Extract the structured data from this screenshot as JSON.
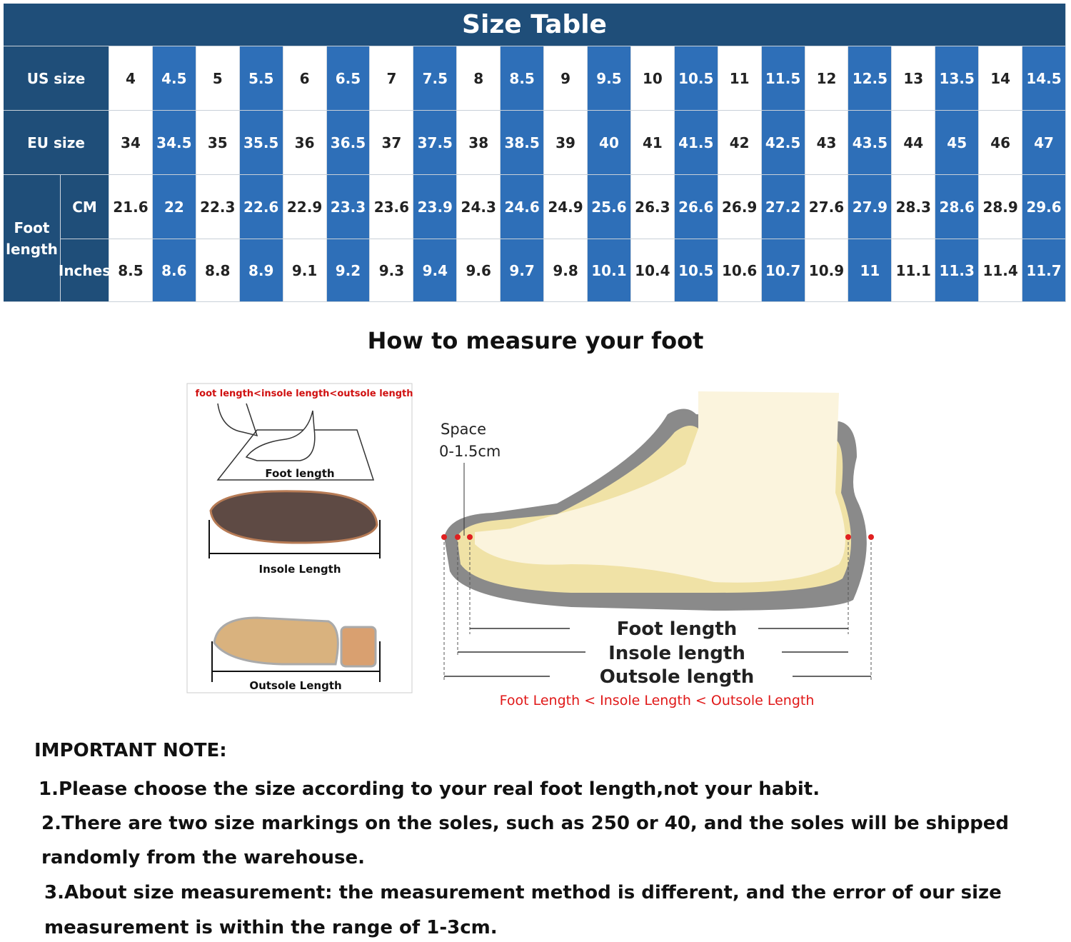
{
  "table": {
    "title": "Size Table",
    "us_label": "US size",
    "eu_label": "EU size",
    "foot_label": "Foot length",
    "cm_label": "CM",
    "inches_label": "Inches",
    "us": [
      "4",
      "4.5",
      "5",
      "5.5",
      "6",
      "6.5",
      "7",
      "7.5",
      "8",
      "8.5",
      "9",
      "9.5",
      "10",
      "10.5",
      "11",
      "11.5",
      "12",
      "12.5",
      "13",
      "13.5",
      "14",
      "14.5"
    ],
    "eu": [
      "34",
      "34.5",
      "35",
      "35.5",
      "36",
      "36.5",
      "37",
      "37.5",
      "38",
      "38.5",
      "39",
      "40",
      "41",
      "41.5",
      "42",
      "42.5",
      "43",
      "43.5",
      "44",
      "45",
      "46",
      "47"
    ],
    "cm": [
      "21.6",
      "22",
      "22.3",
      "22.6",
      "22.9",
      "23.3",
      "23.6",
      "23.9",
      "24.3",
      "24.6",
      "24.9",
      "25.6",
      "26.3",
      "26.6",
      "26.9",
      "27.2",
      "27.6",
      "27.9",
      "28.3",
      "28.6",
      "28.9",
      "29.6"
    ],
    "inches": [
      "8.5",
      "8.6",
      "8.8",
      "8.9",
      "9.1",
      "9.2",
      "9.3",
      "9.4",
      "9.6",
      "9.7",
      "9.8",
      "10.1",
      "10.4",
      "10.5",
      "10.6",
      "10.7",
      "10.9",
      "11",
      "11.1",
      "11.3",
      "11.4",
      "11.7"
    ]
  },
  "measure": {
    "title": "How to measure your foot",
    "left_caption": "foot length<insole length<outsole length",
    "left_foot": "Foot length",
    "left_insole": "Insole Length",
    "left_outsole": "Outsole Length",
    "space": "Space",
    "space_range": "0-1.5cm",
    "foot": "Foot length",
    "insole": "Insole length",
    "outsole": "Outsole length",
    "relation": "Foot Length < Insole Length < Outsole Length"
  },
  "note": {
    "heading": "IMPORTANT NOTE:",
    "lines": [
      "1.Please choose the size according to your real foot length,not your habit.",
      "2.There are two size markings on the soles, such as 250 or 40, and the soles will be shipped",
      "randomly from the warehouse.",
      "3.About size measurement:  the measurement method is different, and the error of our size",
      "measurement is within the range of 1-3cm."
    ]
  }
}
